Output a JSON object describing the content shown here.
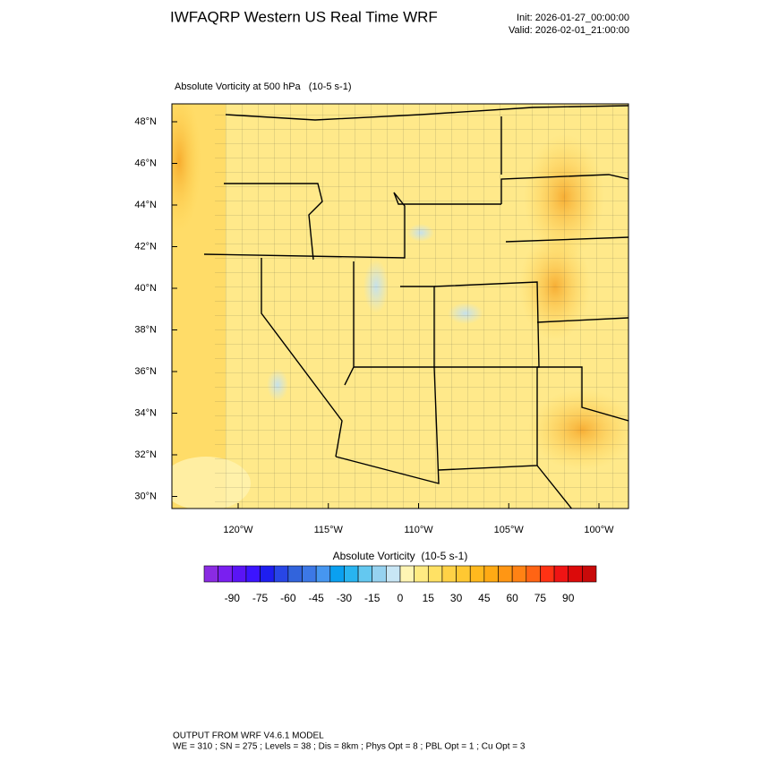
{
  "header": {
    "title": "IWFAQRP Western US Real Time WRF",
    "init": "Init: 2026-01-27_00:00:00",
    "valid": "Valid: 2026-02-01_21:00:00"
  },
  "map": {
    "title": "Absolute Vorticity at 500 hPa   (10-5 s-1)",
    "lat_labels": [
      "48°N",
      "46°N",
      "44°N",
      "42°N",
      "40°N",
      "38°N",
      "36°N",
      "34°N",
      "32°N",
      "30°N"
    ],
    "lon_labels": [
      "120°W",
      "115°W",
      "110°W",
      "105°W",
      "100°W"
    ]
  },
  "colorbar": {
    "title": "Absolute Vorticity  (10-5 s-1)",
    "colors": [
      "#8a2be2",
      "#7a1ff0",
      "#5a14f5",
      "#3c14ff",
      "#1e1ef0",
      "#2846e6",
      "#3264dc",
      "#3c78e6",
      "#4696f0",
      "#0aa0f0",
      "#28b4f0",
      "#64c8f0",
      "#96d2f0",
      "#c8e6f5",
      "#fff5b4",
      "#ffeb82",
      "#ffe164",
      "#ffd246",
      "#ffc832",
      "#ffb91e",
      "#ffaa14",
      "#ff9614",
      "#ff8214",
      "#ff6414",
      "#ff3214",
      "#f01414",
      "#dc0a0a",
      "#c80a0a"
    ],
    "labels": [
      "-90",
      "-75",
      "-60",
      "-45",
      "-30",
      "-15",
      "0",
      "15",
      "30",
      "45",
      "60",
      "75",
      "90"
    ]
  },
  "footer": {
    "lines": [
      "OUTPUT FROM WRF V4.6.1 MODEL",
      "WE = 310 ; SN = 275 ; Levels = 38 ; Dis = 8km ; Phys Opt = 8 ; PBL Opt = 1 ; Cu Opt = 3"
    ]
  }
}
